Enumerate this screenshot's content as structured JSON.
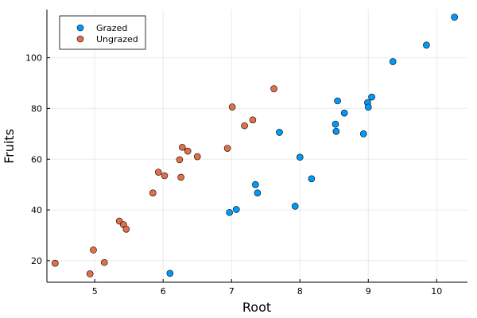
{
  "chart_data": {
    "type": "scatter",
    "xlabel": "Root",
    "ylabel": "Fruits",
    "xlim": [
      4.3,
      10.45
    ],
    "ylim": [
      11.5,
      119
    ],
    "x_ticks": [
      5,
      6,
      7,
      8,
      9,
      10
    ],
    "y_ticks": [
      20,
      40,
      60,
      80,
      100
    ],
    "grid": true,
    "legend_position": "top-left",
    "series": [
      {
        "name": "Grazed",
        "color": "#009AFA",
        "points": [
          [
            6.1,
            15.0
          ],
          [
            6.97,
            39.0
          ],
          [
            7.07,
            40.2
          ],
          [
            7.35,
            50.0
          ],
          [
            7.38,
            46.7
          ],
          [
            7.7,
            70.6
          ],
          [
            7.93,
            41.5
          ],
          [
            8.0,
            60.8
          ],
          [
            8.17,
            52.3
          ],
          [
            8.52,
            73.8
          ],
          [
            8.53,
            71.0
          ],
          [
            8.55,
            83.0
          ],
          [
            8.65,
            78.2
          ],
          [
            8.93,
            70.0
          ],
          [
            8.99,
            82.3
          ],
          [
            9.0,
            80.5
          ],
          [
            9.05,
            84.5
          ],
          [
            9.36,
            98.5
          ],
          [
            9.85,
            105.0
          ],
          [
            10.26,
            116.0
          ]
        ]
      },
      {
        "name": "Ungrazed",
        "color": "#E36F47",
        "points": [
          [
            4.42,
            19.0
          ],
          [
            4.93,
            14.8
          ],
          [
            4.98,
            24.2
          ],
          [
            5.14,
            19.3
          ],
          [
            5.36,
            35.6
          ],
          [
            5.42,
            34.2
          ],
          [
            5.46,
            32.4
          ],
          [
            5.85,
            46.7
          ],
          [
            5.93,
            54.9
          ],
          [
            6.02,
            53.5
          ],
          [
            6.24,
            59.8
          ],
          [
            6.26,
            52.9
          ],
          [
            6.28,
            64.7
          ],
          [
            6.36,
            63.2
          ],
          [
            6.5,
            61.0
          ],
          [
            6.94,
            64.3
          ],
          [
            7.01,
            80.6
          ],
          [
            7.19,
            73.2
          ],
          [
            7.31,
            75.5
          ],
          [
            7.62,
            87.8
          ]
        ]
      }
    ]
  }
}
